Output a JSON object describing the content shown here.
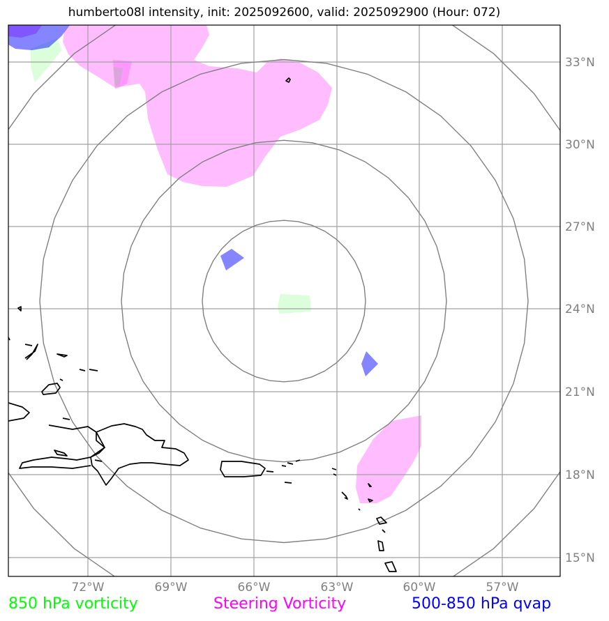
{
  "title": "humberto08l intensity, init: 2025092600, valid: 2025092900 (Hour: 072)",
  "map": {
    "lat_ticks": [
      {
        "label": "33°N",
        "value": 33
      },
      {
        "label": "30°N",
        "value": 30
      },
      {
        "label": "27°N",
        "value": 27
      },
      {
        "label": "24°N",
        "value": 24
      },
      {
        "label": "21°N",
        "value": 21
      },
      {
        "label": "18°N",
        "value": 18
      },
      {
        "label": "15°N",
        "value": 15
      }
    ],
    "lon_ticks": [
      {
        "label": "72°W",
        "value": -72
      },
      {
        "label": "69°W",
        "value": -69
      },
      {
        "label": "66°W",
        "value": -66
      },
      {
        "label": "63°W",
        "value": -63
      },
      {
        "label": "60°W",
        "value": -60
      },
      {
        "label": "57°W",
        "value": -57
      }
    ],
    "colors": {
      "vort850": "#00ff00",
      "steering": "#ff00ff",
      "qvap": "#0000ff",
      "grid": "#a0a0a0",
      "range_rings": "#808080",
      "coastline": "#000000"
    }
  },
  "legend": {
    "vort850": "850 hPa vorticity",
    "steering": "Steering Vorticity",
    "qvap": "500-850 hPa qvap"
  }
}
